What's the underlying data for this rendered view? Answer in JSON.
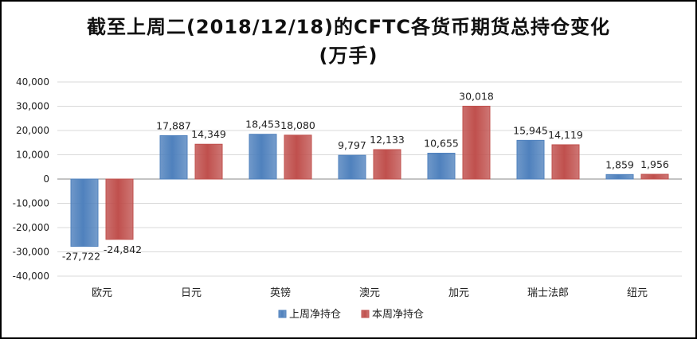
{
  "colors": {
    "series_last": "#4f81bd",
    "series_this": "#c0504d",
    "grid": "#d9d9d9",
    "axis": "#888888"
  },
  "chart_data": {
    "type": "bar",
    "title_line1": "截至上周二(2018/12/18)的CFTC各货币期货总持仓变化",
    "title_line2": "(万手)",
    "categories": [
      "欧元",
      "日元",
      "英镑",
      "澳元",
      "加元",
      "瑞士法郎",
      "纽元"
    ],
    "series": [
      {
        "name": "上周净持仓",
        "values": [
          -27722,
          17887,
          18453,
          9797,
          10655,
          15945,
          1859
        ],
        "labels": [
          "-27,722",
          "17,887",
          "18,453",
          "9,797",
          "10,655",
          "15,945",
          "1,859"
        ]
      },
      {
        "name": "本周净持仓",
        "values": [
          -24842,
          14349,
          18080,
          12133,
          30018,
          14119,
          1956
        ],
        "labels": [
          "-24,842",
          "14,349",
          "18,080",
          "12,133",
          "30,018",
          "14,119",
          "1,956"
        ]
      }
    ],
    "ylim": [
      -40000,
      40000
    ],
    "yticks": [
      40000,
      30000,
      20000,
      10000,
      0,
      -10000,
      -20000,
      -30000,
      -40000
    ],
    "ytick_labels": [
      "40,000",
      "30,000",
      "20,000",
      "10,000",
      "0",
      "-10,000",
      "-20,000",
      "-30,000",
      "-40,000"
    ],
    "grid": true,
    "legend": "bottom-center"
  }
}
